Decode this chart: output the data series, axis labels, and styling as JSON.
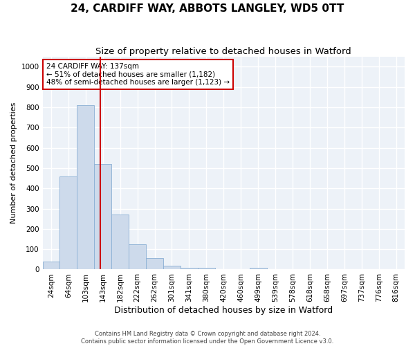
{
  "title": "24, CARDIFF WAY, ABBOTS LANGLEY, WD5 0TT",
  "subtitle": "Size of property relative to detached houses in Watford",
  "xlabel": "Distribution of detached houses by size in Watford",
  "ylabel": "Number of detached properties",
  "footer_line1": "Contains HM Land Registry data © Crown copyright and database right 2024.",
  "footer_line2": "Contains public sector information licensed under the Open Government Licence v3.0.",
  "bar_labels": [
    "24sqm",
    "64sqm",
    "103sqm",
    "143sqm",
    "182sqm",
    "222sqm",
    "262sqm",
    "301sqm",
    "341sqm",
    "380sqm",
    "420sqm",
    "460sqm",
    "499sqm",
    "539sqm",
    "578sqm",
    "618sqm",
    "658sqm",
    "697sqm",
    "737sqm",
    "776sqm",
    "816sqm"
  ],
  "bar_values": [
    40,
    460,
    810,
    520,
    270,
    125,
    55,
    20,
    10,
    10,
    0,
    0,
    10,
    0,
    0,
    0,
    0,
    0,
    0,
    0,
    0
  ],
  "bar_color": "#cddaeb",
  "bar_edge_color": "#8aafd4",
  "vline_color": "#cc0000",
  "annotation_text": "24 CARDIFF WAY: 137sqm\n← 51% of detached houses are smaller (1,182)\n48% of semi-detached houses are larger (1,123) →",
  "annotation_box_color": "#ffffff",
  "annotation_box_edge": "#cc0000",
  "ylim": [
    0,
    1050
  ],
  "yticks": [
    0,
    100,
    200,
    300,
    400,
    500,
    600,
    700,
    800,
    900,
    1000
  ],
  "background_color": "#edf2f8",
  "grid_color": "#ffffff",
  "title_fontsize": 11,
  "subtitle_fontsize": 9.5,
  "xlabel_fontsize": 9,
  "ylabel_fontsize": 8,
  "tick_fontsize": 7.5,
  "annotation_fontsize": 7.5
}
